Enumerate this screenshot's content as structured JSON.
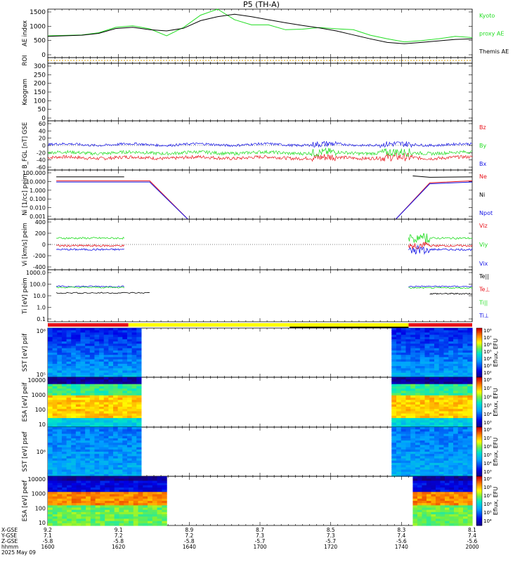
{
  "title": "P5 (TH-A)",
  "date_label": "2025 May 09",
  "colors": {
    "black": "#000000",
    "red": "#e8141c",
    "green": "#22dd22",
    "blue": "#1414e6",
    "yellow": "#ffff00",
    "orange": "#e0a000"
  },
  "x_axis": {
    "time_label": "hhmm",
    "row_labels": [
      "X-GSE",
      "Y-GSE",
      "Z-GSE"
    ],
    "ticks": [
      {
        "time": "1600",
        "x": "9.2",
        "y": "7.1",
        "z": "-5.8"
      },
      {
        "time": "1620",
        "x": "9.1",
        "y": "7.2",
        "z": "-5.8"
      },
      {
        "time": "1640",
        "x": "8.9",
        "y": "7.2",
        "z": "-5.8"
      },
      {
        "time": "1700",
        "x": "8.7",
        "y": "7.3",
        "z": "-5.7"
      },
      {
        "time": "1720",
        "x": "8.5",
        "y": "7.3",
        "z": "-5.7"
      },
      {
        "time": "1740",
        "x": "8.3",
        "y": "7.4",
        "z": "-5.6"
      },
      {
        "time": "2000",
        "x": "8.1",
        "y": "7.4",
        "z": "-5.6"
      }
    ]
  },
  "chart_data": [
    {
      "type": "line",
      "id": "ae",
      "ylabel": "AE index",
      "ylim": [
        -100,
        1500
      ],
      "yticks": [
        "1500",
        "1000",
        "500",
        "0"
      ],
      "right_labels": [
        {
          "text": "Kyoto",
          "color": "green"
        },
        {
          "text": "proxy AE",
          "color": "green"
        },
        {
          "text": "Themis AE",
          "color": "black"
        }
      ],
      "series": [
        {
          "name": "Kyoto proxy AE",
          "color": "green",
          "x": [
            0,
            0.08,
            0.12,
            0.16,
            0.2,
            0.24,
            0.28,
            0.32,
            0.36,
            0.4,
            0.44,
            0.48,
            0.52,
            0.56,
            0.6,
            0.64,
            0.68,
            0.72,
            0.76,
            0.8,
            0.84,
            0.88,
            0.92,
            0.96,
            1
          ],
          "y": [
            620,
            650,
            720,
            900,
            950,
            850,
            620,
            900,
            1300,
            1500,
            1150,
            980,
            980,
            820,
            840,
            890,
            850,
            820,
            640,
            520,
            420,
            460,
            520,
            600,
            560
          ]
        },
        {
          "name": "Themis AE",
          "color": "black",
          "x": [
            0,
            0.08,
            0.12,
            0.16,
            0.2,
            0.24,
            0.28,
            0.32,
            0.36,
            0.4,
            0.44,
            0.48,
            0.52,
            0.56,
            0.6,
            0.64,
            0.68,
            0.72,
            0.76,
            0.8,
            0.84,
            0.88,
            0.92,
            0.96,
            1
          ],
          "y": [
            600,
            640,
            700,
            860,
            900,
            820,
            780,
            870,
            1120,
            1250,
            1330,
            1250,
            1150,
            1050,
            960,
            880,
            780,
            650,
            520,
            400,
            360,
            400,
            450,
            500,
            520
          ]
        }
      ]
    },
    {
      "type": "line",
      "id": "roi",
      "ylabel": "ROI",
      "ylim": [
        0,
        1
      ],
      "yticks": [],
      "series": []
    },
    {
      "type": "heatmap",
      "id": "keogram",
      "ylabel": "Keogram",
      "ylim": [
        0,
        300
      ],
      "yticks": [
        "300",
        "250",
        "200",
        "150",
        "100",
        "50",
        "0"
      ]
    },
    {
      "type": "line",
      "id": "b",
      "ylabel": "B_FGL [nT] GSE",
      "ylim": [
        -60,
        60
      ],
      "yticks": [
        "60",
        "40",
        "20",
        "0",
        "-20",
        "-40",
        "-60"
      ],
      "right_labels": [
        {
          "text": "Bz",
          "color": "red"
        },
        {
          "text": "By",
          "color": "green"
        },
        {
          "text": "Bx",
          "color": "blue"
        }
      ],
      "series": [
        {
          "name": "Bz",
          "color": "red",
          "base": -30,
          "noise": 8
        },
        {
          "name": "By",
          "color": "green",
          "base": -18,
          "noise": 8
        },
        {
          "name": "Bx",
          "color": "blue",
          "base": 2,
          "noise": 6
        }
      ]
    },
    {
      "type": "line",
      "id": "ni",
      "log": true,
      "ylabel": "Ni [1/cc] peim",
      "ylim": [
        0.001,
        100
      ],
      "yticks": [
        "100.000",
        "10.000",
        "1.000",
        "0.100",
        "0.010",
        "0.001"
      ],
      "right_labels": [
        {
          "text": "Ne",
          "color": "red"
        },
        {
          "text": "Ni",
          "color": "black"
        },
        {
          "text": "Npot",
          "color": "blue"
        }
      ]
    },
    {
      "type": "line",
      "id": "vi",
      "ylabel": "Vi [km/s] peim",
      "ylim": [
        -400,
        400
      ],
      "yticks": [
        "400",
        "200",
        "0",
        "-200",
        "-400"
      ],
      "right_labels": [
        {
          "text": "Viz",
          "color": "red"
        },
        {
          "text": "Viy",
          "color": "green"
        },
        {
          "text": "Vix",
          "color": "blue"
        }
      ]
    },
    {
      "type": "line",
      "id": "ti",
      "log": true,
      "ylabel": "Ti [eV] peim",
      "ylim": [
        0.1,
        10000
      ],
      "yticks": [
        "1000.0",
        "100.0",
        "10.0",
        "1.0",
        "0.1"
      ],
      "right_labels": [
        {
          "text": "Te||",
          "color": "black"
        },
        {
          "text": "Te⊥",
          "color": "red"
        },
        {
          "text": "Ti||",
          "color": "green"
        },
        {
          "text": "Ti⊥",
          "color": "blue"
        }
      ]
    },
    {
      "type": "heatmap",
      "id": "sst_i",
      "ylabel": "SST [eV] psif",
      "yticks": [
        "10⁶",
        "10⁵"
      ],
      "colorbar": [
        "10⁸",
        "10⁷",
        "10⁶",
        "10⁵",
        "10⁴",
        "10³",
        "10²"
      ],
      "cblabel": "Eflux, EFU"
    },
    {
      "type": "heatmap",
      "id": "esa_i",
      "ylabel": "ESA [eV] peif",
      "yticks": [
        "10000",
        "1000",
        "100",
        "10"
      ],
      "colorbar": [
        "10⁸",
        "10⁷",
        "10⁶",
        "10⁵",
        "10⁴",
        "10³"
      ],
      "cblabel": "Eflux, EFU"
    },
    {
      "type": "heatmap",
      "id": "sst_e",
      "ylabel": "SST [eV] psef",
      "yticks": [
        "10⁶"
      ],
      "colorbar": [
        "10⁸",
        "10⁷",
        "10⁶",
        "10⁵",
        "10⁴",
        "10³"
      ],
      "cblabel": "Eflux, EFU"
    },
    {
      "type": "heatmap",
      "id": "esa_e",
      "ylabel": "ESA [eV] peef",
      "yticks": [
        "10000",
        "1000",
        "100",
        "10"
      ],
      "colorbar": [
        "10⁹",
        "10⁸",
        "10⁷",
        "10⁶",
        "10⁵",
        "10⁴"
      ],
      "cblabel": "Eflux, EFU"
    }
  ]
}
